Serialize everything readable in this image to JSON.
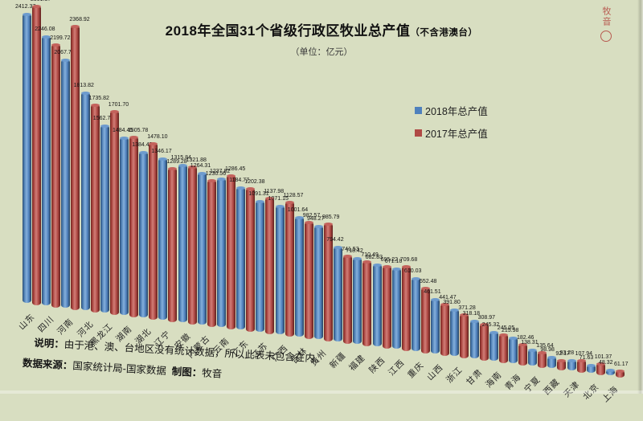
{
  "title": {
    "main": "2018年全国31个省级行政区牧业总产值",
    "paren": "（不含港澳台）",
    "subtitle": "（单位：亿元）"
  },
  "legend": {
    "items": [
      {
        "label": "2018年总产值",
        "color": "#4f81bd"
      },
      {
        "label": "2017年总产值",
        "color": "#b04a45"
      }
    ]
  },
  "notes": {
    "line1_label": "说明：",
    "line1_text": "由于港、澳、台地区没有统计数据，所以此表未包含在内。",
    "source_label": "数据来源：",
    "source_text": "国家统计局-国家数据",
    "credit_label": "制图：",
    "credit_text": "牧音"
  },
  "watermark": {
    "text": "牧音"
  },
  "chart_data": {
    "type": "bar",
    "title": "2018年全国31个省级行政区牧业总产值（不含港澳台）",
    "unit": "亿元",
    "sorted_by": "2018年总产值降序",
    "grid": false,
    "legend_position": "middle-right",
    "style": "3d-cylinder",
    "background": "#d8dec1",
    "ylim": [
      0,
      2600
    ],
    "categories": [
      "山东",
      "四川",
      "河南",
      "河北",
      "黑龙江",
      "湖南",
      "湖北",
      "辽宁",
      "安徽",
      "内蒙古",
      "云南",
      "广东",
      "江苏",
      "广西",
      "吉林",
      "贵州",
      "新疆",
      "福建",
      "陕西",
      "江西",
      "重庆",
      "山西",
      "浙江",
      "甘肃",
      "海南",
      "青海",
      "宁夏",
      "西藏",
      "天津",
      "北京",
      "上海"
    ],
    "series": [
      {
        "name": "2018年总产值",
        "color": "#4f81bd",
        "values": [
          2412.37,
          2246.08,
          2067.71,
          1813.82,
          1562.77,
          1484.45,
          1384.45,
          1346.17,
          1315.84,
          1264.31,
          1237.82,
          1184.77,
          1091.31,
          1071.15,
          1001.64,
          948.27,
          794.42,
          718.42,
          682.83,
          671.18,
          610.03,
          461.51,
          391.8,
          318.18,
          245.32,
          215.98,
          138.31,
          98.98,
          93.28,
          71.63,
          48.32
        ]
      },
      {
        "name": "2017年总产值",
        "color": "#b04a45",
        "values": [
          2501.57,
          2199.72,
          2368.92,
          1735.82,
          1701.7,
          1505.78,
          1478.1,
          1289.28,
          1321.88,
          1230.56,
          1286.45,
          1202.38,
          1137.98,
          1128.57,
          982.57,
          985.79,
          741.53,
          710.49,
          695.22,
          709.68,
          552.48,
          441.47,
          371.28,
          308.97,
          245.05,
          182.46,
          135.64,
          92.17,
          107.94,
          101.37,
          61.17
        ]
      }
    ]
  }
}
